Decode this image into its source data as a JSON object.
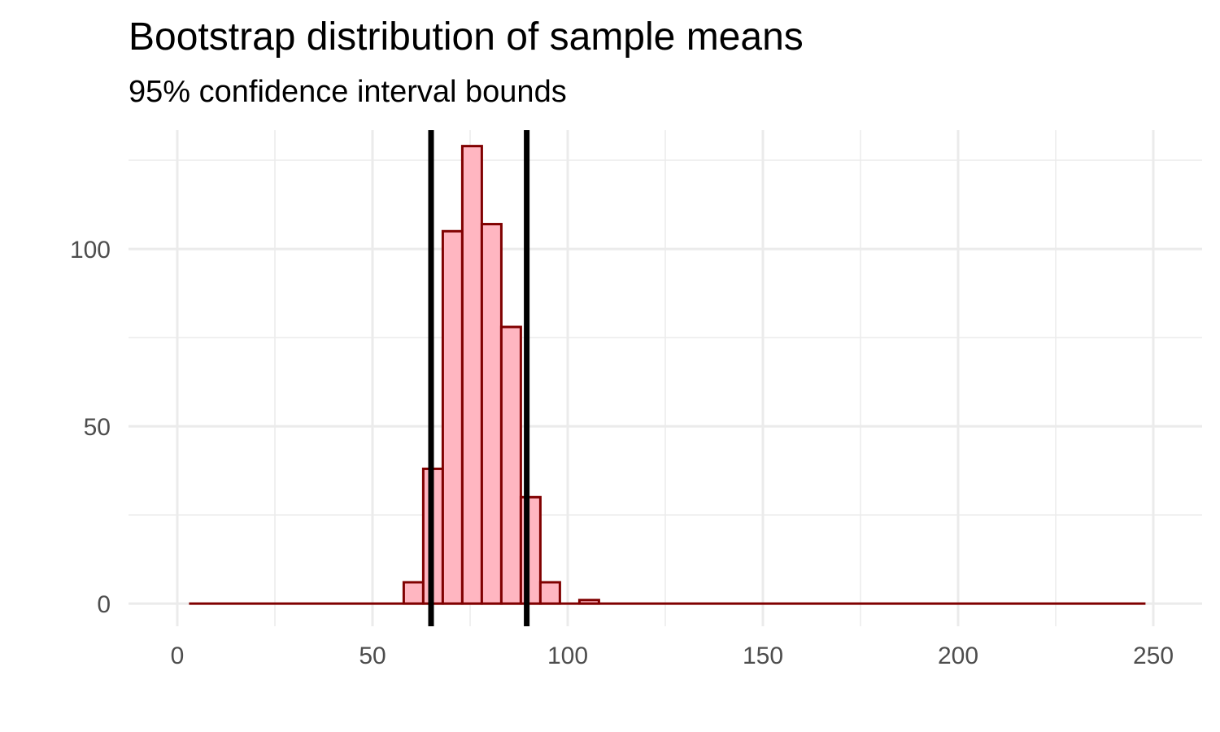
{
  "chart_data": {
    "type": "bar",
    "title": "Bootstrap distribution of sample means",
    "subtitle": "95% confidence interval bounds",
    "xlabel": "",
    "ylabel": "",
    "bin_width": 5,
    "x_range": [
      3,
      248
    ],
    "xlim": [
      -12.5,
      262.5
    ],
    "ylim": [
      -6.4,
      133.5
    ],
    "x_ticks": [
      0,
      50,
      100,
      150,
      200,
      250
    ],
    "x_tick_labels": [
      "0",
      "50",
      "100",
      "150",
      "200",
      "250"
    ],
    "y_ticks": [
      0,
      50,
      100
    ],
    "y_tick_labels": [
      "0",
      "50",
      "100"
    ],
    "y_minor_ticks": [
      25,
      75,
      125
    ],
    "x_minor_ticks": [
      25,
      75,
      125,
      175,
      225
    ],
    "bins": [
      {
        "x": 60.5,
        "count": 6
      },
      {
        "x": 65.5,
        "count": 38
      },
      {
        "x": 70.5,
        "count": 105
      },
      {
        "x": 75.5,
        "count": 129
      },
      {
        "x": 80.5,
        "count": 107
      },
      {
        "x": 85.5,
        "count": 78
      },
      {
        "x": 90.5,
        "count": 30
      },
      {
        "x": 95.5,
        "count": 6
      },
      {
        "x": 100.5,
        "count": 0
      },
      {
        "x": 105.5,
        "count": 1
      }
    ],
    "ci_bounds": [
      65,
      89.5
    ],
    "colors": {
      "bar_fill": "#ffb6c1",
      "bar_stroke": "#800000",
      "ci_line": "#000000",
      "grid": "#ebebeb",
      "tick_text": "#4d4d4d"
    },
    "grid": true,
    "legend": "none"
  }
}
